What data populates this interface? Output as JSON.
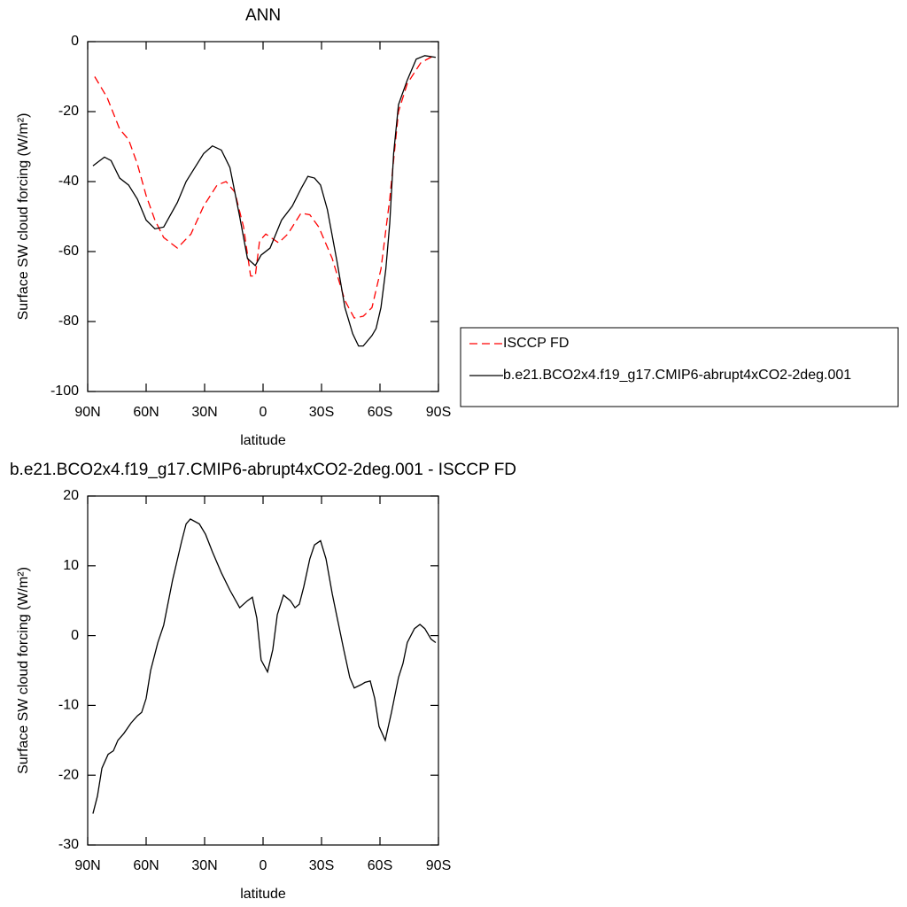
{
  "chart_data": [
    {
      "type": "line",
      "title": "ANN",
      "xlabel": "latitude",
      "ylabel": "Surface SW cloud forcing (W/m²)",
      "xlim": [
        90,
        -90
      ],
      "xticks": [
        {
          "value": 90,
          "label": "90N"
        },
        {
          "value": 60,
          "label": "60N"
        },
        {
          "value": 30,
          "label": "30N"
        },
        0,
        {
          "value": -30,
          "label": "30S"
        },
        {
          "value": -60,
          "label": "60S"
        },
        {
          "value": -90,
          "label": "90S"
        }
      ],
      "ylim": [
        -100,
        0
      ],
      "yticks": [
        0,
        -20,
        -40,
        -60,
        -80,
        -100
      ],
      "legend": "right",
      "series": [
        {
          "name": "ISCCP FD",
          "color": "#ff0000",
          "dash": true,
          "x": [
            86.4,
            80,
            73.6,
            69,
            64.5,
            60,
            55.5,
            51,
            44,
            37,
            30.5,
            23.6,
            19,
            14.5,
            10,
            6.4,
            4,
            1.8,
            -1.4,
            -8,
            -12.7,
            -19.5,
            -24,
            -28.6,
            -35.5,
            -42,
            -46.8,
            -51.4,
            -55.9,
            -60.5,
            -65,
            -69.5,
            -74,
            -81,
            -87.7
          ],
          "values": [
            -10,
            -16,
            -25,
            -28,
            -35,
            -44,
            -51,
            -56,
            -59,
            -55,
            -47,
            -41,
            -40,
            -43,
            -53,
            -67,
            -67,
            -57,
            -55,
            -57.5,
            -55,
            -49,
            -49.5,
            -53,
            -62,
            -74,
            -79,
            -78.5,
            -76,
            -65,
            -45,
            -20,
            -12,
            -6,
            -4
          ]
        },
        {
          "name": "b.e21.BCO2x4.f19_g17.CMIP6-abrupt4xCO2-2deg.001",
          "color": "#000000",
          "dash": false,
          "x": [
            87.3,
            81.4,
            78,
            73.6,
            69,
            64.5,
            60,
            55.5,
            51,
            44,
            39.5,
            35,
            30.5,
            26,
            21.4,
            17,
            12,
            8,
            4,
            1,
            -3.6,
            -9.5,
            -15,
            -19.5,
            -23,
            -26.4,
            -29.5,
            -33,
            -38,
            -42,
            -46,
            -49,
            -51.4,
            -55.9,
            -58,
            -60.5,
            -63,
            -65,
            -67,
            -69.5,
            -74,
            -78.6,
            -83,
            -88.6
          ],
          "values": [
            -35.5,
            -33,
            -34,
            -39,
            -41,
            -45,
            -51,
            -53.5,
            -53,
            -46,
            -40,
            -36,
            -32,
            -29.8,
            -31,
            -36,
            -50,
            -62,
            -64,
            -61,
            -59,
            -51,
            -47,
            -42,
            -38.5,
            -39,
            -41,
            -48,
            -63,
            -76,
            -83.5,
            -87,
            -87,
            -84,
            -82,
            -76,
            -65,
            -52,
            -32,
            -18,
            -11,
            -5,
            -4,
            -4.5
          ]
        }
      ]
    },
    {
      "type": "line",
      "title": "b.e21.BCO2x4.f19_g17.CMIP6-abrupt4xCO2-2deg.001 - ISCCP FD",
      "xlabel": "latitude",
      "ylabel": "Surface SW cloud forcing (W/m²)",
      "xlim": [
        90,
        -90
      ],
      "xticks": [
        {
          "value": 90,
          "label": "90N"
        },
        {
          "value": 60,
          "label": "60N"
        },
        {
          "value": 30,
          "label": "30N"
        },
        0,
        {
          "value": -30,
          "label": "30S"
        },
        {
          "value": -60,
          "label": "60S"
        },
        {
          "value": -90,
          "label": "90S"
        }
      ],
      "ylim": [
        -30,
        20
      ],
      "yticks": [
        20,
        10,
        0,
        -10,
        -20,
        -30
      ],
      "series": [
        {
          "color": "#000000",
          "dash": false,
          "x": [
            87.3,
            85,
            82.7,
            79.5,
            76.8,
            74.5,
            71.4,
            67.7,
            64.5,
            62.3,
            60,
            57.7,
            54,
            51,
            46.4,
            41.8,
            39.5,
            37.3,
            32.7,
            29.5,
            26,
            21.4,
            17,
            12,
            8,
            5.5,
            3.2,
            1,
            -2.3,
            -5,
            -7.3,
            -10.5,
            -14,
            -16.4,
            -18.6,
            -20.9,
            -24,
            -26.4,
            -29.5,
            -32.3,
            -35.5,
            -37.7,
            -41.4,
            -44.5,
            -46.8,
            -50.5,
            -52.3,
            -55,
            -57.3,
            -59.5,
            -62.7,
            -65.9,
            -69.5,
            -71.8,
            -74,
            -77.7,
            -80.5,
            -83,
            -86.2,
            -88.6
          ],
          "values": [
            -25.5,
            -23,
            -19,
            -17,
            -16.5,
            -15,
            -14,
            -12.5,
            -11.5,
            -11,
            -9,
            -5,
            -1,
            1.5,
            8,
            13.5,
            16,
            16.7,
            16,
            14.5,
            12,
            9,
            6.5,
            4,
            5,
            5.5,
            2.5,
            -3.5,
            -5.2,
            -2,
            3,
            5.8,
            5,
            4,
            4.5,
            7,
            11,
            13,
            13.6,
            11,
            6,
            3,
            -2,
            -6,
            -7.5,
            -7,
            -6.7,
            -6.5,
            -9,
            -13,
            -15,
            -11,
            -6,
            -4,
            -1,
            1,
            1.6,
            1,
            -0.5,
            -1
          ]
        }
      ]
    }
  ]
}
